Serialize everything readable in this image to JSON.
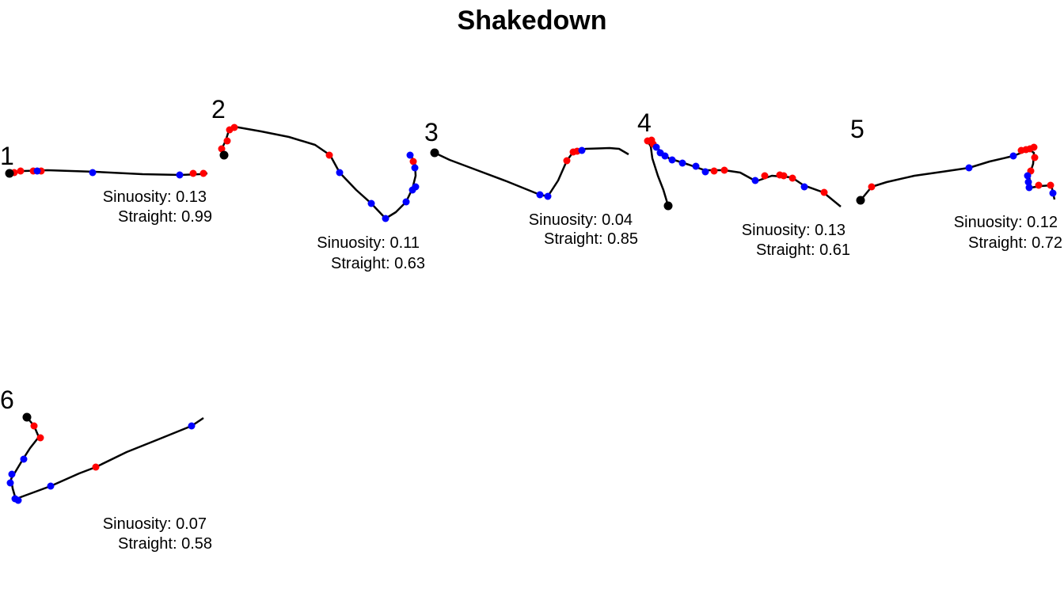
{
  "chart_data": {
    "type": "line",
    "title": "Shakedown",
    "xlabel": "",
    "ylabel": "",
    "grid": false,
    "legend": "none",
    "colors": {
      "path": "#000000",
      "start": "#000000",
      "red_points": "#ff0000",
      "blue_points": "#0000ff"
    },
    "panels": [
      {
        "label": "1",
        "sinuosity": "Sinuosity: 0.13",
        "straight": "Straight: 0.99",
        "path": [
          [
            12,
            219
          ],
          [
            30,
            216
          ],
          [
            60,
            215
          ],
          [
            120,
            217
          ],
          [
            180,
            220
          ],
          [
            228,
            221
          ],
          [
            252,
            220
          ],
          [
            262,
            219
          ]
        ],
        "start": [
          12,
          219
        ],
        "red": [
          [
            18,
            218
          ],
          [
            26,
            216
          ],
          [
            42,
            216
          ],
          [
            52,
            216
          ],
          [
            244,
            219
          ],
          [
            257,
            219
          ]
        ],
        "blue": [
          [
            47,
            216
          ],
          [
            117,
            218
          ],
          [
            227,
            221
          ]
        ]
      },
      {
        "label": "2",
        "sinuosity": "Sinuosity: 0.11",
        "straight": "Straight: 0.63",
        "path": [
          [
            283,
            196
          ],
          [
            280,
            188
          ],
          [
            285,
            178
          ],
          [
            289,
            165
          ],
          [
            296,
            160
          ],
          [
            330,
            166
          ],
          [
            365,
            173
          ],
          [
            398,
            183
          ],
          [
            417,
            196
          ],
          [
            429,
            218
          ],
          [
            450,
            240
          ],
          [
            469,
            257
          ],
          [
            487,
            276
          ],
          [
            500,
            268
          ],
          [
            513,
            255
          ],
          [
            521,
            238
          ],
          [
            525,
            222
          ],
          [
            524,
            204
          ],
          [
            518,
            196
          ]
        ],
        "start": [
          283,
          196
        ],
        "red": [
          [
            280,
            188
          ],
          [
            287,
            178
          ],
          [
            290,
            164
          ],
          [
            296,
            161
          ],
          [
            416,
            196
          ],
          [
            522,
            204
          ]
        ],
        "blue": [
          [
            429,
            218
          ],
          [
            469,
            257
          ],
          [
            487,
            276
          ],
          [
            513,
            255
          ],
          [
            521,
            240
          ],
          [
            525,
            236
          ],
          [
            524,
            212
          ],
          [
            518,
            196
          ]
        ]
      },
      {
        "label": "3",
        "sinuosity": "Sinuosity: 0.04",
        "straight": "Straight: 0.85",
        "path": [
          [
            549,
            193
          ],
          [
            568,
            202
          ],
          [
            600,
            214
          ],
          [
            640,
            229
          ],
          [
            682,
            246
          ],
          [
            692,
            248
          ],
          [
            705,
            228
          ],
          [
            716,
            203
          ],
          [
            724,
            192
          ],
          [
            740,
            188
          ],
          [
            770,
            187
          ],
          [
            782,
            188
          ],
          [
            794,
            195
          ]
        ],
        "start": [
          549,
          193
        ],
        "red": [
          [
            716,
            203
          ],
          [
            724,
            192
          ],
          [
            729,
            191
          ]
        ],
        "blue": [
          [
            682,
            246
          ],
          [
            692,
            248
          ],
          [
            735,
            190
          ]
        ]
      },
      {
        "label": "4",
        "sinuosity": "Sinuosity: 0.13",
        "straight": "Straight: 0.61",
        "path": [
          [
            844,
            260
          ],
          [
            838,
            240
          ],
          [
            831,
            222
          ],
          [
            824,
            200
          ],
          [
            822,
            185
          ],
          [
            818,
            178
          ],
          [
            830,
            187
          ],
          [
            845,
            200
          ],
          [
            870,
            208
          ],
          [
            890,
            215
          ],
          [
            915,
            215
          ],
          [
            935,
            218
          ],
          [
            955,
            229
          ],
          [
            975,
            222
          ],
          [
            1000,
            224
          ],
          [
            1015,
            234
          ],
          [
            1040,
            243
          ],
          [
            1062,
            261
          ]
        ],
        "start": [
          844,
          260
        ],
        "red": [
          [
            818,
            178
          ],
          [
            823,
            177
          ],
          [
            825,
            182
          ],
          [
            902,
            216
          ],
          [
            915,
            215
          ],
          [
            966,
            222
          ],
          [
            985,
            221
          ],
          [
            990,
            222
          ],
          [
            1001,
            225
          ],
          [
            1041,
            243
          ]
        ],
        "blue": [
          [
            829,
            186
          ],
          [
            834,
            193
          ],
          [
            840,
            197
          ],
          [
            849,
            202
          ],
          [
            862,
            206
          ],
          [
            879,
            210
          ],
          [
            891,
            217
          ],
          [
            954,
            228
          ],
          [
            1016,
            236
          ]
        ]
      },
      {
        "label": "5",
        "sinuosity": "Sinuosity: 0.12",
        "straight": "Straight: 0.72",
        "path": [
          [
            1087,
            253
          ],
          [
            1101,
            236
          ],
          [
            1120,
            230
          ],
          [
            1155,
            222
          ],
          [
            1190,
            217
          ],
          [
            1224,
            212
          ],
          [
            1250,
            204
          ],
          [
            1280,
            197
          ],
          [
            1300,
            189
          ],
          [
            1306,
            193
          ],
          [
            1305,
            207
          ],
          [
            1300,
            222
          ],
          [
            1302,
            237
          ],
          [
            1315,
            235
          ],
          [
            1328,
            234
          ],
          [
            1332,
            252
          ]
        ],
        "start": [
          1087,
          253
        ],
        "red": [
          [
            1101,
            236
          ],
          [
            1290,
            190
          ],
          [
            1296,
            189
          ],
          [
            1301,
            188
          ],
          [
            1306,
            186
          ],
          [
            1307,
            199
          ],
          [
            1302,
            216
          ],
          [
            1312,
            234
          ],
          [
            1327,
            234
          ]
        ],
        "blue": [
          [
            1224,
            212
          ],
          [
            1280,
            197
          ],
          [
            1298,
            222
          ],
          [
            1299,
            230
          ],
          [
            1300,
            237
          ],
          [
            1330,
            244
          ]
        ]
      },
      {
        "label": "6",
        "sinuosity": "Sinuosity: 0.07",
        "straight": "Straight: 0.58",
        "path": [
          [
            34,
            527
          ],
          [
            43,
            538
          ],
          [
            49,
            552
          ],
          [
            38,
            566
          ],
          [
            29,
            580
          ],
          [
            20,
            595
          ],
          [
            14,
            605
          ],
          [
            16,
            617
          ],
          [
            20,
            631
          ],
          [
            26,
            628
          ],
          [
            64,
            614
          ],
          [
            100,
            598
          ],
          [
            121,
            590
          ],
          [
            160,
            571
          ],
          [
            200,
            555
          ],
          [
            242,
            538
          ],
          [
            257,
            528
          ]
        ],
        "start": [
          34,
          527
        ],
        "red": [
          [
            43,
            538
          ],
          [
            51,
            553
          ],
          [
            121,
            590
          ]
        ],
        "blue": [
          [
            30,
            580
          ],
          [
            15,
            599
          ],
          [
            13,
            610
          ],
          [
            19,
            630
          ],
          [
            23,
            632
          ],
          [
            64,
            614
          ],
          [
            242,
            538
          ]
        ]
      }
    ]
  },
  "layout_hint": "six trajectory panels"
}
